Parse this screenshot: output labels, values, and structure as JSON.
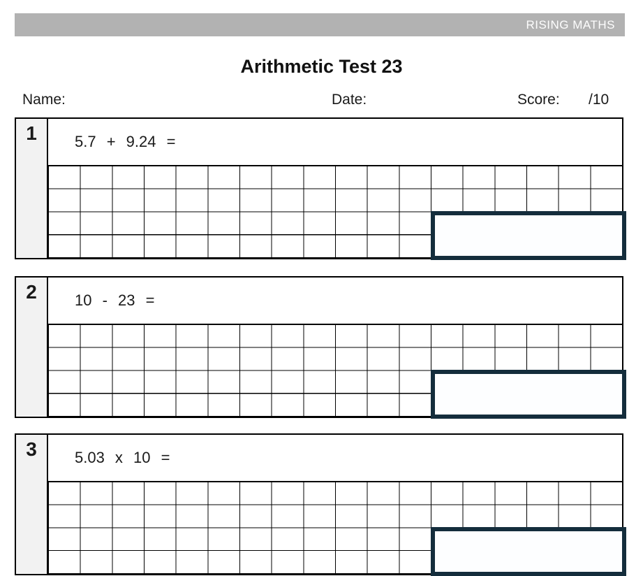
{
  "banner": {
    "brand": "RISING MATHS"
  },
  "title": "Arithmetic Test 23",
  "meta": {
    "name_label": "Name:",
    "date_label": "Date:",
    "score_label": "Score:",
    "score_value": "/10"
  },
  "questions": [
    {
      "number": "1",
      "expression": "5.7 + 9.24 ="
    },
    {
      "number": "2",
      "expression": "10 - 23 ="
    },
    {
      "number": "3",
      "expression": "5.03 x 10 ="
    }
  ],
  "colors": {
    "banner_bg": "#b2b2b2",
    "number_column_bg": "#f2f2f2",
    "answer_box_border": "#142d3c",
    "grid_line": "#000000"
  }
}
